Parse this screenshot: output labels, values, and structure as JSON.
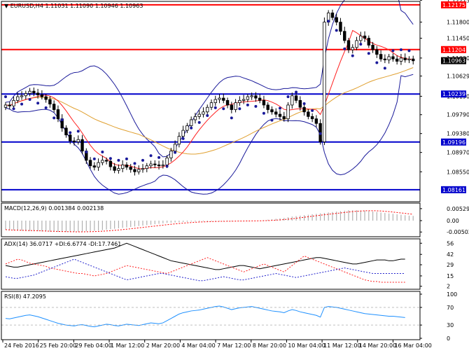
{
  "chart_data": {
    "type": "candlestick",
    "symbol_line": "EURUSD,H4  1.11031 1.11090 1.10946 1.10963",
    "x_tick_labels": [
      "24 Feb 2016",
      "25 Feb 20:00",
      "29 Feb 04:00",
      "1 Mar 12:00",
      "2 Mar 20:00",
      "4 Mar 04:00",
      "7 Mar 12:00",
      "8 Mar 20:00",
      "10 Mar 04:00",
      "11 Mar 12:00",
      "14 Mar 20:00",
      "16 Mar 04:00"
    ],
    "price_axis": {
      "ylim": [
        1.079,
        1.1225
      ],
      "ticks": [
        "1.12275",
        "1.11800",
        "1.11450",
        "1.11020",
        "1.10629",
        "1.10190",
        "1.09790",
        "1.09380",
        "1.08970",
        "1.08550"
      ],
      "current_price": "1.10963"
    },
    "levels": [
      {
        "value": 1.12175,
        "label": "1.12175",
        "color": "#ff0000"
      },
      {
        "value": 1.11204,
        "label": "1.11204",
        "color": "#ff0000"
      },
      {
        "value": 1.10239,
        "label": "1.10239",
        "color": "#0000cc"
      },
      {
        "value": 1.09196,
        "label": "1.09196",
        "color": "#0000cc"
      },
      {
        "value": 1.08161,
        "label": "1.08161",
        "color": "#0000cc"
      }
    ],
    "close_series": [
      1.1,
      1.0998,
      1.101,
      1.1018,
      1.102,
      1.1025,
      1.103,
      1.1026,
      1.1022,
      1.1018,
      1.1012,
      1.1002,
      1.099,
      1.097,
      1.095,
      1.0935,
      1.0922,
      1.092,
      1.0925,
      1.09,
      1.088,
      1.0868,
      1.0865,
      1.0875,
      1.088,
      1.0878,
      1.0866,
      1.0858,
      1.0862,
      1.087,
      1.0865,
      1.086,
      1.0855,
      1.086,
      1.0862,
      1.0868,
      1.0872,
      1.087,
      1.0868,
      1.087,
      1.0885,
      1.09,
      1.0915,
      1.0932,
      1.0945,
      1.0955,
      1.0968,
      1.0975,
      1.098,
      1.0985,
      1.0995,
      1.1005,
      1.1012,
      1.1015,
      1.101,
      1.1,
      1.099,
      1.1005,
      1.101,
      1.1012,
      1.1018,
      1.102,
      1.1015,
      1.101,
      1.1,
      1.099,
      1.0985,
      1.098,
      1.0975,
      1.097,
      1.1,
      1.102,
      1.101,
      1.0995,
      1.0985,
      1.0975,
      1.097,
      1.096,
      1.092,
      1.118,
      1.12,
      1.119,
      1.118,
      1.116,
      1.114,
      1.112,
      1.1125,
      1.114,
      1.115,
      1.1145,
      1.113,
      1.112,
      1.111,
      1.11,
      1.1098,
      1.1105,
      1.11,
      1.1095,
      1.1102,
      1.1098,
      1.11,
      1.1096
    ],
    "indicators": [
      {
        "name": "MACD(12,26,9) 0.001384 0.002138",
        "ticks": [
          "0.005295",
          "0.00",
          "-0.005029"
        ],
        "ylim": [
          -0.0065,
          0.0065
        ],
        "values": [
          -0.004,
          -0.0042,
          -0.0043,
          -0.0044,
          -0.0045,
          -0.0046,
          -0.0046,
          -0.0047,
          -0.0047,
          -0.0048,
          -0.0048,
          -0.0049,
          -0.0049,
          -0.005,
          -0.005,
          -0.005,
          -0.005,
          -0.005,
          -0.0049,
          -0.0048,
          -0.0047,
          -0.0046,
          -0.0045,
          -0.0044,
          -0.0042,
          -0.004,
          -0.0038,
          -0.0036,
          -0.0034,
          -0.0032,
          -0.003,
          -0.0028,
          -0.0026,
          -0.0024,
          -0.0022,
          -0.002,
          -0.0018,
          -0.0016,
          -0.0014,
          -0.0012,
          -0.001,
          -0.0009,
          -0.0008,
          -0.0007,
          -0.0006,
          -0.0005,
          -0.0004,
          -0.0004,
          -0.0004,
          -0.0003,
          -0.0003,
          -0.0003,
          -0.0002,
          -0.0002,
          -0.0002,
          -0.0002,
          -0.0002,
          -0.0001,
          -0.0001,
          -0.0001,
          -0.0001,
          0.0,
          0.0,
          0.0,
          0.0002,
          0.0004,
          0.0006,
          0.0008,
          0.001,
          0.0012,
          0.0015,
          0.0018,
          0.002,
          0.0022,
          0.0024,
          0.0026,
          0.0028,
          0.003,
          0.0032,
          0.0034,
          0.0036,
          0.0038,
          0.004,
          0.0042,
          0.0044,
          0.0046,
          0.0046,
          0.0046,
          0.0045,
          0.0044,
          0.0042,
          0.004,
          0.0038,
          0.0036,
          0.0034,
          0.0032,
          0.003,
          0.0028,
          0.0026,
          0.0024,
          0.0022,
          0.0021
        ]
      },
      {
        "name": "ADX(14) 36.0717 +DI:6.6774 -DI:17.7461",
        "ticks": [
          "56",
          "42",
          "29",
          "15",
          "2"
        ],
        "ylim": [
          0,
          58
        ],
        "adx": [
          28,
          27,
          26,
          26,
          27,
          28,
          29,
          30,
          31,
          32,
          33,
          34,
          35,
          36,
          37,
          38,
          39,
          40,
          41,
          42,
          43,
          44,
          45,
          46,
          47,
          48,
          49,
          50,
          52,
          54,
          56,
          54,
          52,
          50,
          48,
          46,
          44,
          42,
          40,
          38,
          36,
          34,
          33,
          32,
          31,
          30,
          29,
          28,
          27,
          26,
          25,
          24,
          23,
          23,
          24,
          25,
          26,
          27,
          28,
          28,
          27,
          26,
          25,
          24,
          25,
          26,
          27,
          28,
          29,
          30,
          31,
          32,
          33,
          34,
          35,
          36,
          37,
          38,
          38,
          37,
          36,
          35,
          34,
          33,
          32,
          31,
          30,
          30,
          31,
          32,
          33,
          34,
          35,
          35,
          35,
          34,
          34,
          35,
          36,
          36
        ],
        "di_plus": [
          30,
          32,
          34,
          36,
          35,
          33,
          31,
          30,
          29,
          28,
          27,
          25,
          24,
          23,
          22,
          21,
          20,
          19,
          18,
          18,
          17,
          16,
          15,
          16,
          17,
          18,
          20,
          22,
          24,
          26,
          28,
          27,
          26,
          25,
          24,
          23,
          22,
          21,
          20,
          19,
          18,
          20,
          22,
          24,
          26,
          28,
          30,
          32,
          34,
          36,
          38,
          36,
          34,
          32,
          30,
          28,
          26,
          24,
          22,
          20,
          22,
          24,
          26,
          28,
          30,
          28,
          26,
          24,
          22,
          20,
          24,
          28,
          32,
          36,
          40,
          38,
          36,
          34,
          32,
          30,
          28,
          26,
          24,
          22,
          20,
          18,
          16,
          14,
          12,
          10,
          9,
          8,
          8,
          7,
          7,
          7,
          7,
          7,
          7,
          7
        ],
        "di_minus": [
          14,
          13,
          12,
          12,
          13,
          14,
          15,
          16,
          18,
          20,
          22,
          24,
          26,
          28,
          30,
          32,
          34,
          36,
          34,
          32,
          30,
          28,
          26,
          24,
          22,
          20,
          18,
          16,
          14,
          12,
          10,
          11,
          12,
          13,
          14,
          15,
          16,
          17,
          18,
          18,
          17,
          16,
          15,
          14,
          13,
          12,
          11,
          10,
          9,
          9,
          10,
          11,
          12,
          13,
          14,
          13,
          12,
          11,
          10,
          10,
          11,
          12,
          13,
          14,
          15,
          16,
          17,
          18,
          17,
          16,
          15,
          14,
          13,
          14,
          15,
          16,
          17,
          18,
          19,
          20,
          21,
          22,
          23,
          24,
          25,
          24,
          23,
          22,
          21,
          20,
          19,
          18,
          18,
          18,
          18,
          18,
          18,
          18,
          18,
          18
        ]
      },
      {
        "name": "RSI(8) 47.2095",
        "ticks": [
          "100",
          "70",
          "30",
          "0"
        ],
        "ylim": [
          0,
          100
        ],
        "values": [
          45,
          44,
          46,
          48,
          50,
          52,
          53,
          51,
          49,
          46,
          43,
          40,
          37,
          34,
          32,
          30,
          29,
          28,
          30,
          31,
          29,
          27,
          26,
          28,
          30,
          32,
          31,
          29,
          28,
          30,
          32,
          31,
          30,
          29,
          31,
          33,
          35,
          34,
          33,
          35,
          40,
          45,
          50,
          55,
          58,
          60,
          62,
          63,
          64,
          66,
          68,
          70,
          72,
          73,
          71,
          68,
          65,
          67,
          69,
          70,
          71,
          72,
          70,
          68,
          66,
          64,
          62,
          61,
          60,
          58,
          62,
          65,
          63,
          60,
          58,
          56,
          54,
          52,
          48,
          70,
          72,
          71,
          70,
          68,
          66,
          64,
          62,
          60,
          58,
          56,
          55,
          54,
          53,
          52,
          51,
          50,
          50,
          49,
          48,
          47
        ]
      }
    ]
  }
}
